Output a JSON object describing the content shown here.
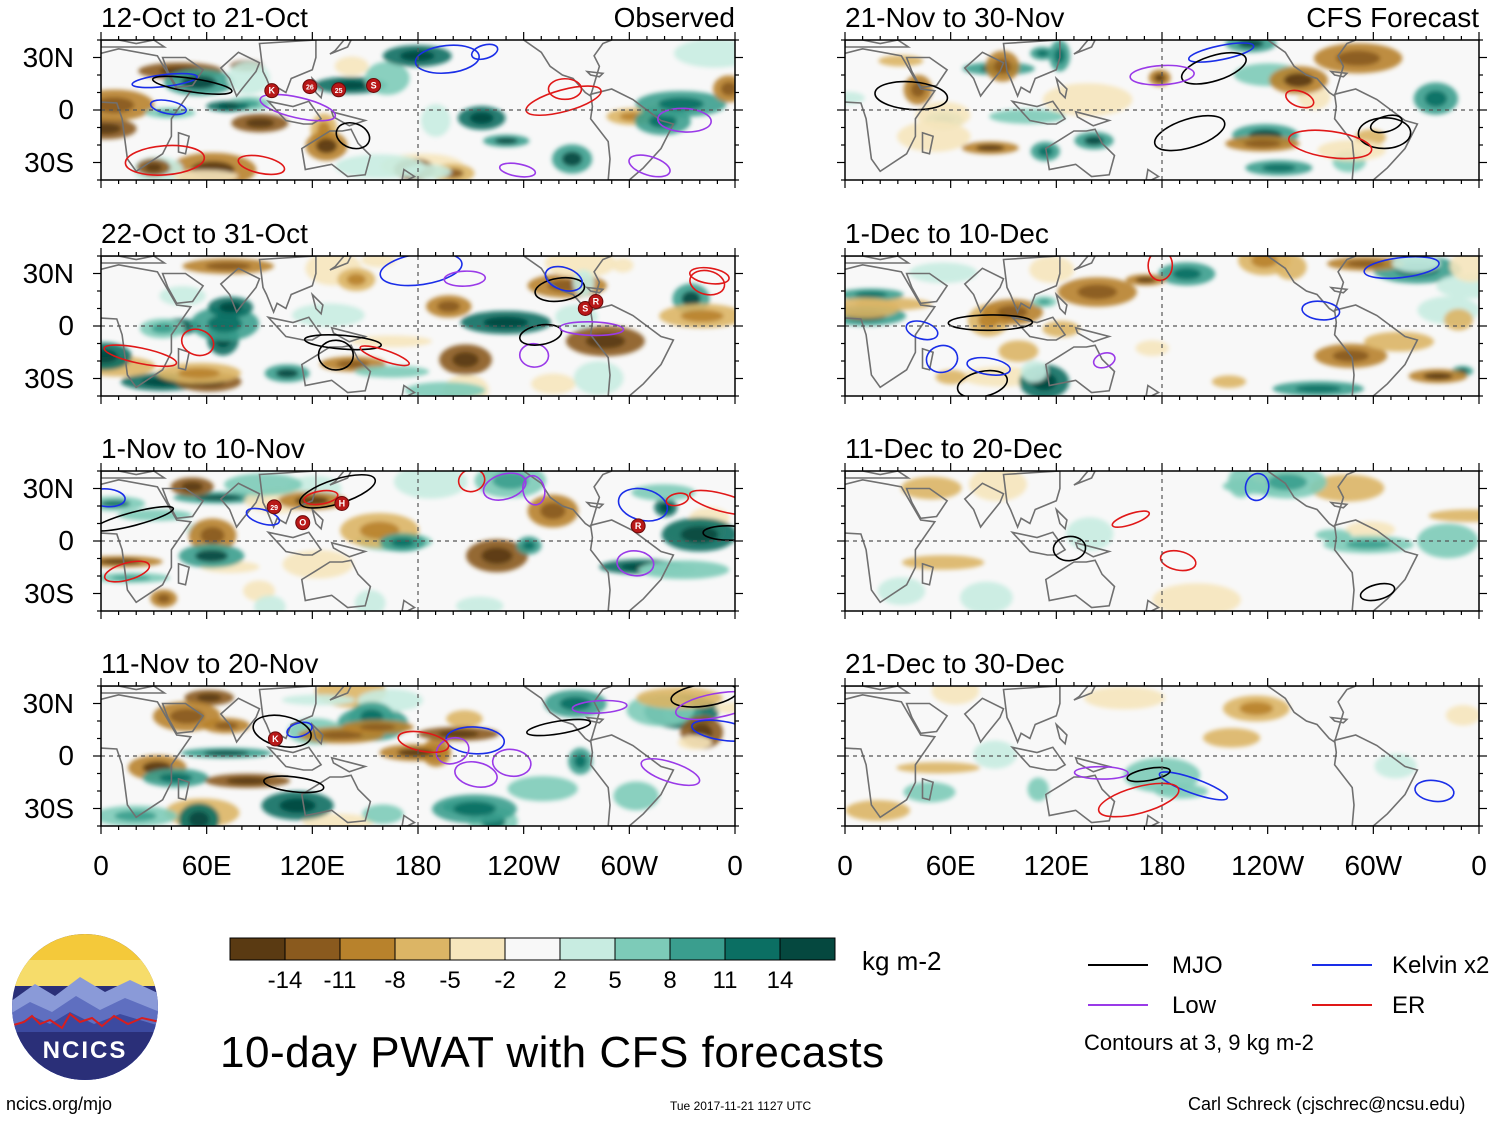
{
  "title": "10-day PWAT with CFS forecasts",
  "site_url": "ncics.org/mjo",
  "timestamp": "Tue 2017-11-21 1127 UTC",
  "credit": "Carl Schreck (cjschrec@ncsu.edu)",
  "logo_text": "NCICS",
  "panel_kinds": {
    "observed": "Observed",
    "forecast": "CFS Forecast"
  },
  "panels": [
    {
      "id": "p1",
      "col": 0,
      "row": 0,
      "period": "12-Oct to 21-Oct",
      "tag": "Observed"
    },
    {
      "id": "p2",
      "col": 0,
      "row": 1,
      "period": "22-Oct to 31-Oct",
      "tag": ""
    },
    {
      "id": "p3",
      "col": 0,
      "row": 2,
      "period": "1-Nov to 10-Nov",
      "tag": ""
    },
    {
      "id": "p4",
      "col": 0,
      "row": 3,
      "period": "11-Nov to 20-Nov",
      "tag": ""
    },
    {
      "id": "p5",
      "col": 1,
      "row": 0,
      "period": "21-Nov to 30-Nov",
      "tag": "CFS Forecast"
    },
    {
      "id": "p6",
      "col": 1,
      "row": 1,
      "period": "1-Dec to 10-Dec",
      "tag": ""
    },
    {
      "id": "p7",
      "col": 1,
      "row": 2,
      "period": "11-Dec to 20-Dec",
      "tag": ""
    },
    {
      "id": "p8",
      "col": 1,
      "row": 3,
      "period": "21-Dec to 30-Dec",
      "tag": ""
    }
  ],
  "lat_labels": [
    "30N",
    "0",
    "30S"
  ],
  "lon_labels": [
    "0",
    "60E",
    "120E",
    "180",
    "120W",
    "60W",
    "0"
  ],
  "colorbar": {
    "unit": "kg m-2",
    "ticks": [
      "-14",
      "-11",
      "-8",
      "-5",
      "-2",
      "2",
      "5",
      "8",
      "11",
      "14"
    ],
    "colors": [
      "#5a3a12",
      "#8a5a1e",
      "#b8822c",
      "#dcb565",
      "#f6e6bd",
      "#f8f8f8",
      "#c8ece1",
      "#7dcbb8",
      "#3a9e8e",
      "#0b6f63",
      "#05483f"
    ]
  },
  "legend": {
    "items": [
      {
        "label": "MJO",
        "color": "#000000"
      },
      {
        "label": "Kelvin x2",
        "color": "#1a2ee8"
      },
      {
        "label": "Low",
        "color": "#9a3ae8"
      },
      {
        "label": "ER",
        "color": "#e01818"
      }
    ],
    "note": "Contours at 3, 9 kg m-2"
  },
  "storm_labels": {
    "p1": [
      "K",
      "26",
      "25",
      "S"
    ],
    "p2": [
      "S",
      "R"
    ],
    "p3": [
      "29",
      "O",
      "H",
      "R"
    ],
    "p4": [
      "K"
    ]
  }
}
